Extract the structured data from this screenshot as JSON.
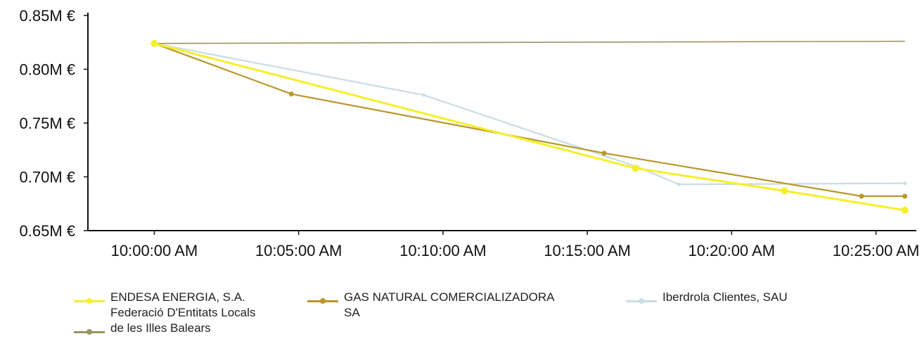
{
  "chart_data": {
    "type": "line",
    "x": [
      "10:00:00 AM",
      "10:05:00 AM",
      "10:10:00 AM",
      "10:15:00 AM",
      "10:20:00 AM",
      "10:25:00 AM"
    ],
    "xlim_minutes_from_start": [
      -2.3,
      26.4
    ],
    "yticks": [
      "0.65M €",
      "0.70M €",
      "0.75M €",
      "0.80M €",
      "0.85M €"
    ],
    "ylim": [
      0.65,
      0.85
    ],
    "grid": false,
    "legend_position": "bottom",
    "series": [
      {
        "name": "ENDESA ENERGIA, S.A.",
        "color": "#f5ef2a",
        "points": [
          {
            "x": "10:00:00 AM",
            "y": 0.824
          },
          {
            "x": "10:16:40 AM",
            "y": 0.708
          },
          {
            "x": "10:21:50 AM",
            "y": 0.687
          },
          {
            "x": "10:26:00 AM",
            "y": 0.669
          }
        ]
      },
      {
        "name": "GAS NATURAL COMERCIALIZADORA SA",
        "color": "#b8972a",
        "points": [
          {
            "x": "10:00:00 AM",
            "y": 0.824
          },
          {
            "x": "10:04:45 AM",
            "y": 0.777
          },
          {
            "x": "10:15:35 AM",
            "y": 0.722
          },
          {
            "x": "10:24:30 AM",
            "y": 0.682
          },
          {
            "x": "10:26:00 AM",
            "y": 0.682
          }
        ]
      },
      {
        "name": "Iberdrola Clientes, SAU",
        "color": "#c9dde3",
        "points": [
          {
            "x": "10:00:00 AM",
            "y": 0.824
          },
          {
            "x": "10:09:20 AM",
            "y": 0.776
          },
          {
            "x": "10:16:45 AM",
            "y": 0.709
          },
          {
            "x": "10:18:10 AM",
            "y": 0.693
          },
          {
            "x": "10:26:00 AM",
            "y": 0.694
          }
        ]
      },
      {
        "name": "Federació D'Entitats Locals de les Illes Balears",
        "color": "#9a9460",
        "points": [
          {
            "x": "10:00:00 AM",
            "y": 0.824
          },
          {
            "x": "10:26:00 AM",
            "y": 0.826
          }
        ]
      }
    ]
  },
  "legend": [
    {
      "label": "ENDESA ENERGIA, S.A.",
      "color": "#f5ef2a"
    },
    {
      "label": "GAS NATURAL COMERCIALIZADORA\nSA",
      "color": "#b8972a"
    },
    {
      "label": "Iberdrola Clientes, SAU",
      "color": "#c9dde3"
    },
    {
      "label": "Federació D'Entitats Locals\nde les Illes Balears",
      "color": "#9a9460"
    }
  ]
}
